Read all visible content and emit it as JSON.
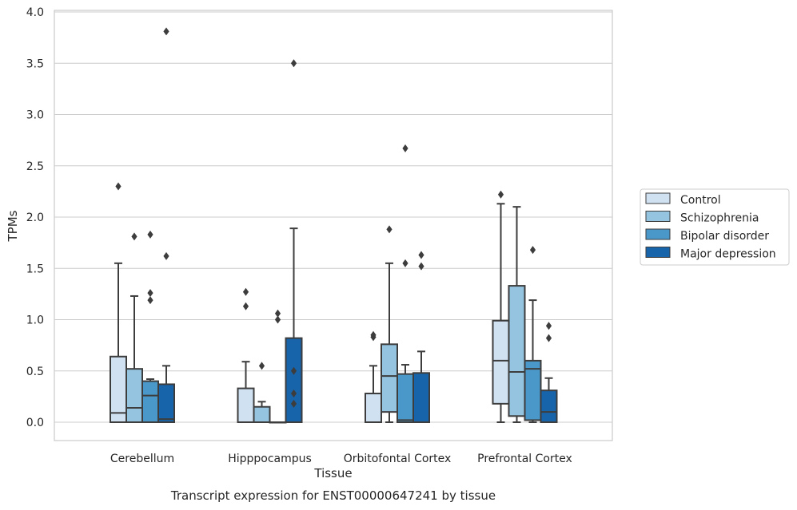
{
  "chart_data": {
    "type": "box",
    "caption": "Transcript expression for ENST00000647241 by tissue",
    "xlabel": "Tissue",
    "ylabel": "TPMs",
    "ylim": [
      -0.18,
      4.02
    ],
    "yticks": [
      "0.0",
      "0.5",
      "1.0",
      "1.5",
      "2.0",
      "2.5",
      "3.0",
      "3.5",
      "4.0"
    ],
    "ytick_values": [
      0,
      0.5,
      1.0,
      1.5,
      2.0,
      2.5,
      3.0,
      3.5,
      4.0
    ],
    "grid": true,
    "legend_position": "right",
    "categories": [
      "Cerebellum",
      "Hipppocampus",
      "Orbitofontal Cortex",
      "Prefrontal Cortex"
    ],
    "series": [
      {
        "name": "Control",
        "color": "#d0e1f2",
        "boxes": [
          {
            "whislo": 0,
            "q1": 0,
            "med": 0.09,
            "q3": 0.64,
            "whishi": 1.55,
            "fliers": [
              2.3
            ]
          },
          {
            "whislo": 0,
            "q1": 0,
            "med": 0,
            "q3": 0.33,
            "whishi": 0.59,
            "fliers": [
              1.13,
              1.27
            ]
          },
          {
            "whislo": 0,
            "q1": 0,
            "med": 0,
            "q3": 0.28,
            "whishi": 0.55,
            "fliers": [
              0.83,
              0.85
            ]
          },
          {
            "whislo": 0,
            "q1": 0.18,
            "med": 0.6,
            "q3": 0.99,
            "whishi": 2.13,
            "fliers": [
              2.22
            ]
          }
        ]
      },
      {
        "name": "Schizophrenia",
        "color": "#94c4df",
        "boxes": [
          {
            "whislo": 0,
            "q1": 0,
            "med": 0.14,
            "q3": 0.52,
            "whishi": 1.23,
            "fliers": [
              1.81
            ]
          },
          {
            "whislo": 0,
            "q1": 0,
            "med": 0,
            "q3": 0.15,
            "whishi": 0.2,
            "fliers": [
              0.55
            ]
          },
          {
            "whislo": 0,
            "q1": 0.1,
            "med": 0.45,
            "q3": 0.76,
            "whishi": 1.55,
            "fliers": [
              1.88
            ]
          },
          {
            "whislo": 0,
            "q1": 0.06,
            "med": 0.49,
            "q3": 1.33,
            "whishi": 2.1,
            "fliers": []
          }
        ]
      },
      {
        "name": "Bipolar disorder",
        "color": "#4a98c9",
        "boxes": [
          {
            "whislo": 0,
            "q1": 0,
            "med": 0.26,
            "q3": 0.4,
            "whishi": 0.42,
            "fliers": [
              1.19,
              1.26,
              1.83
            ]
          },
          {
            "whislo": 0,
            "q1": 0,
            "med": 0,
            "q3": 0,
            "whishi": 0,
            "fliers": [
              1.0,
              1.06
            ]
          },
          {
            "whislo": 0,
            "q1": 0,
            "med": 0.02,
            "q3": 0.47,
            "whishi": 0.56,
            "fliers": [
              1.55,
              2.67
            ]
          },
          {
            "whislo": 0,
            "q1": 0.02,
            "med": 0.52,
            "q3": 0.6,
            "whishi": 1.19,
            "fliers": [
              1.68
            ]
          }
        ]
      },
      {
        "name": "Major depression",
        "color": "#1764ab",
        "boxes": [
          {
            "whislo": 0,
            "q1": 0,
            "med": 0.03,
            "q3": 0.37,
            "whishi": 0.55,
            "fliers": [
              1.62,
              3.81
            ]
          },
          {
            "whislo": 0,
            "q1": 0,
            "med": 0,
            "q3": 0.82,
            "whishi": 1.89,
            "fliers": [
              0.18,
              0.28,
              0.5,
              3.5
            ]
          },
          {
            "whislo": 0,
            "q1": 0,
            "med": 0,
            "q3": 0.48,
            "whishi": 0.69,
            "fliers": [
              1.52,
              1.63
            ]
          },
          {
            "whislo": 0,
            "q1": 0,
            "med": 0.1,
            "q3": 0.31,
            "whishi": 0.43,
            "fliers": [
              0.82,
              0.94
            ]
          }
        ]
      }
    ]
  }
}
